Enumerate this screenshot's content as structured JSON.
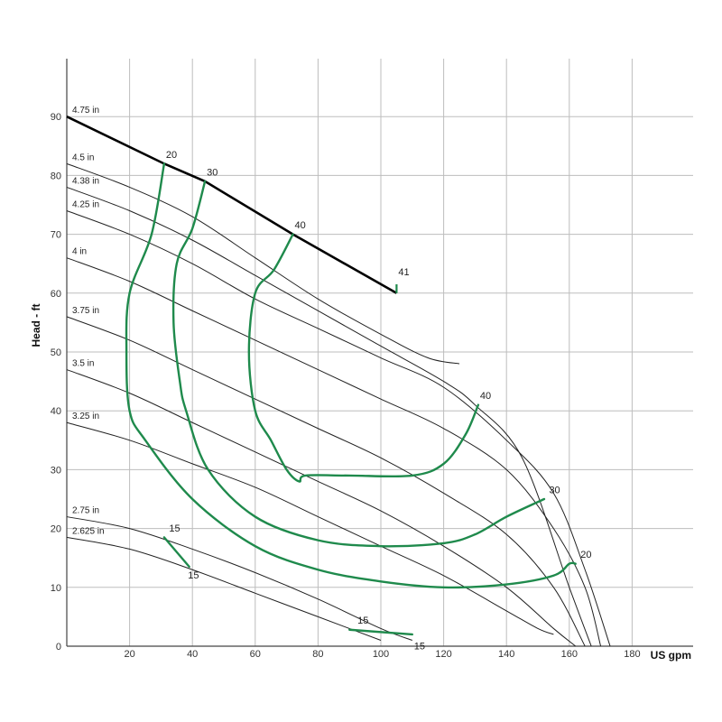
{
  "chart_data": {
    "type": "line",
    "title": "",
    "xlabel": "US gpm",
    "ylabel": "Head - ft",
    "xlim": [
      0,
      200
    ],
    "ylim": [
      0,
      100
    ],
    "x_ticks": [
      "20",
      "40",
      "60",
      "80",
      "100",
      "120",
      "140",
      "160",
      "180"
    ],
    "y_ticks": [
      "0",
      "10",
      "20",
      "30",
      "40",
      "50",
      "60",
      "70",
      "80",
      "90"
    ],
    "grid": true,
    "colors": {
      "impeller": "#222222",
      "efficiency": "#1f8a4c",
      "max_line": "#000000",
      "grid": "#bdbdbd"
    },
    "impeller_curves": [
      {
        "name": "4.75 in",
        "x": [
          0,
          31,
          44,
          72,
          105
        ],
        "y": [
          90,
          82,
          79,
          70,
          60
        ]
      },
      {
        "name": "4.5 in",
        "x": [
          0,
          20,
          40,
          60,
          80,
          100,
          115,
          125
        ],
        "y": [
          82,
          78,
          73,
          66,
          59,
          53,
          49,
          48
        ]
      },
      {
        "name": "4.38 in",
        "x": [
          0,
          20,
          40,
          60,
          80,
          100,
          120,
          130,
          145,
          160,
          167
        ],
        "y": [
          78,
          74,
          69,
          63,
          57,
          51,
          45,
          41,
          32,
          10,
          0
        ]
      },
      {
        "name": "4.25 in",
        "x": [
          0,
          20,
          40,
          60,
          80,
          100,
          120,
          140,
          155,
          165,
          173
        ],
        "y": [
          74,
          70,
          65,
          59,
          54,
          49,
          44,
          35,
          26,
          13,
          0
        ]
      },
      {
        "name": "4 in",
        "x": [
          0,
          20,
          40,
          60,
          80,
          100,
          120,
          140,
          155,
          165,
          170
        ],
        "y": [
          66,
          62,
          57,
          52,
          47,
          42,
          37,
          30,
          20,
          10,
          0
        ]
      },
      {
        "name": "3.75 in",
        "x": [
          0,
          20,
          40,
          60,
          80,
          100,
          120,
          140,
          155,
          165
        ],
        "y": [
          56,
          52,
          47,
          42,
          37,
          32,
          26,
          19,
          10,
          0
        ]
      },
      {
        "name": "3.5 in",
        "x": [
          0,
          20,
          40,
          60,
          80,
          100,
          120,
          140,
          155,
          162
        ],
        "y": [
          47,
          43,
          38,
          33,
          28,
          23,
          17,
          10,
          3,
          0
        ]
      },
      {
        "name": "3.25 in",
        "x": [
          0,
          20,
          40,
          60,
          80,
          100,
          120,
          140,
          150,
          155
        ],
        "y": [
          38,
          35,
          31,
          27,
          22,
          17,
          12,
          6,
          3,
          2
        ]
      },
      {
        "name": "2.75 in",
        "x": [
          0,
          20,
          40,
          60,
          80,
          100,
          110
        ],
        "y": [
          22,
          20,
          16.5,
          12.5,
          8,
          3,
          1
        ]
      },
      {
        "name": "2.625 in",
        "x": [
          0,
          20,
          40,
          60,
          80,
          100
        ],
        "y": [
          18.5,
          16.5,
          13,
          9,
          5,
          1
        ]
      }
    ],
    "efficiency_curves": [
      {
        "name": "20",
        "x": [
          31,
          27,
          20,
          19,
          20,
          25,
          40,
          60,
          80,
          100,
          120,
          140,
          155,
          160,
          162
        ],
        "y": [
          82,
          70,
          60,
          50,
          40,
          35,
          25,
          17,
          13,
          11,
          10,
          10.5,
          12,
          14,
          14
        ]
      },
      {
        "name": "30",
        "x": [
          44,
          40,
          35,
          34,
          36,
          38,
          45,
          60,
          80,
          100,
          120,
          130,
          140,
          152
        ],
        "y": [
          79,
          71,
          65,
          55,
          45,
          40,
          30,
          22,
          18,
          17,
          17.5,
          19,
          22,
          25
        ]
      },
      {
        "name": "40",
        "x": [
          72,
          66,
          60,
          58,
          60,
          65,
          70,
          74,
          76,
          90,
          110,
          120,
          127,
          131
        ],
        "y": [
          70,
          64,
          60,
          50,
          40,
          35,
          30,
          28,
          29,
          29,
          29,
          31,
          36,
          41
        ]
      },
      {
        "name": "15",
        "x": [
          31,
          39
        ],
        "y": [
          18.5,
          13.5
        ]
      },
      {
        "name": "15",
        "x": [
          90,
          110
        ],
        "y": [
          2.8,
          2.0
        ]
      }
    ],
    "max_line_label": "41",
    "max_line": {
      "x": [
        105,
        105
      ],
      "y": [
        60,
        61.5
      ]
    },
    "efficiency_labels": [
      {
        "text": "20",
        "x": 31,
        "y": 83
      },
      {
        "text": "30",
        "x": 44,
        "y": 80
      },
      {
        "text": "40",
        "x": 72,
        "y": 71
      },
      {
        "text": "41",
        "x": 105,
        "y": 63
      },
      {
        "text": "40",
        "x": 131,
        "y": 42
      },
      {
        "text": "30",
        "x": 153,
        "y": 26
      },
      {
        "text": "20",
        "x": 163,
        "y": 15
      },
      {
        "text": "15",
        "x": 32,
        "y": 19.5
      },
      {
        "text": "15",
        "x": 38,
        "y": 11.5
      },
      {
        "text": "15",
        "x": 92,
        "y": 3.8
      },
      {
        "text": "15",
        "x": 110,
        "y": -0.5
      }
    ]
  }
}
